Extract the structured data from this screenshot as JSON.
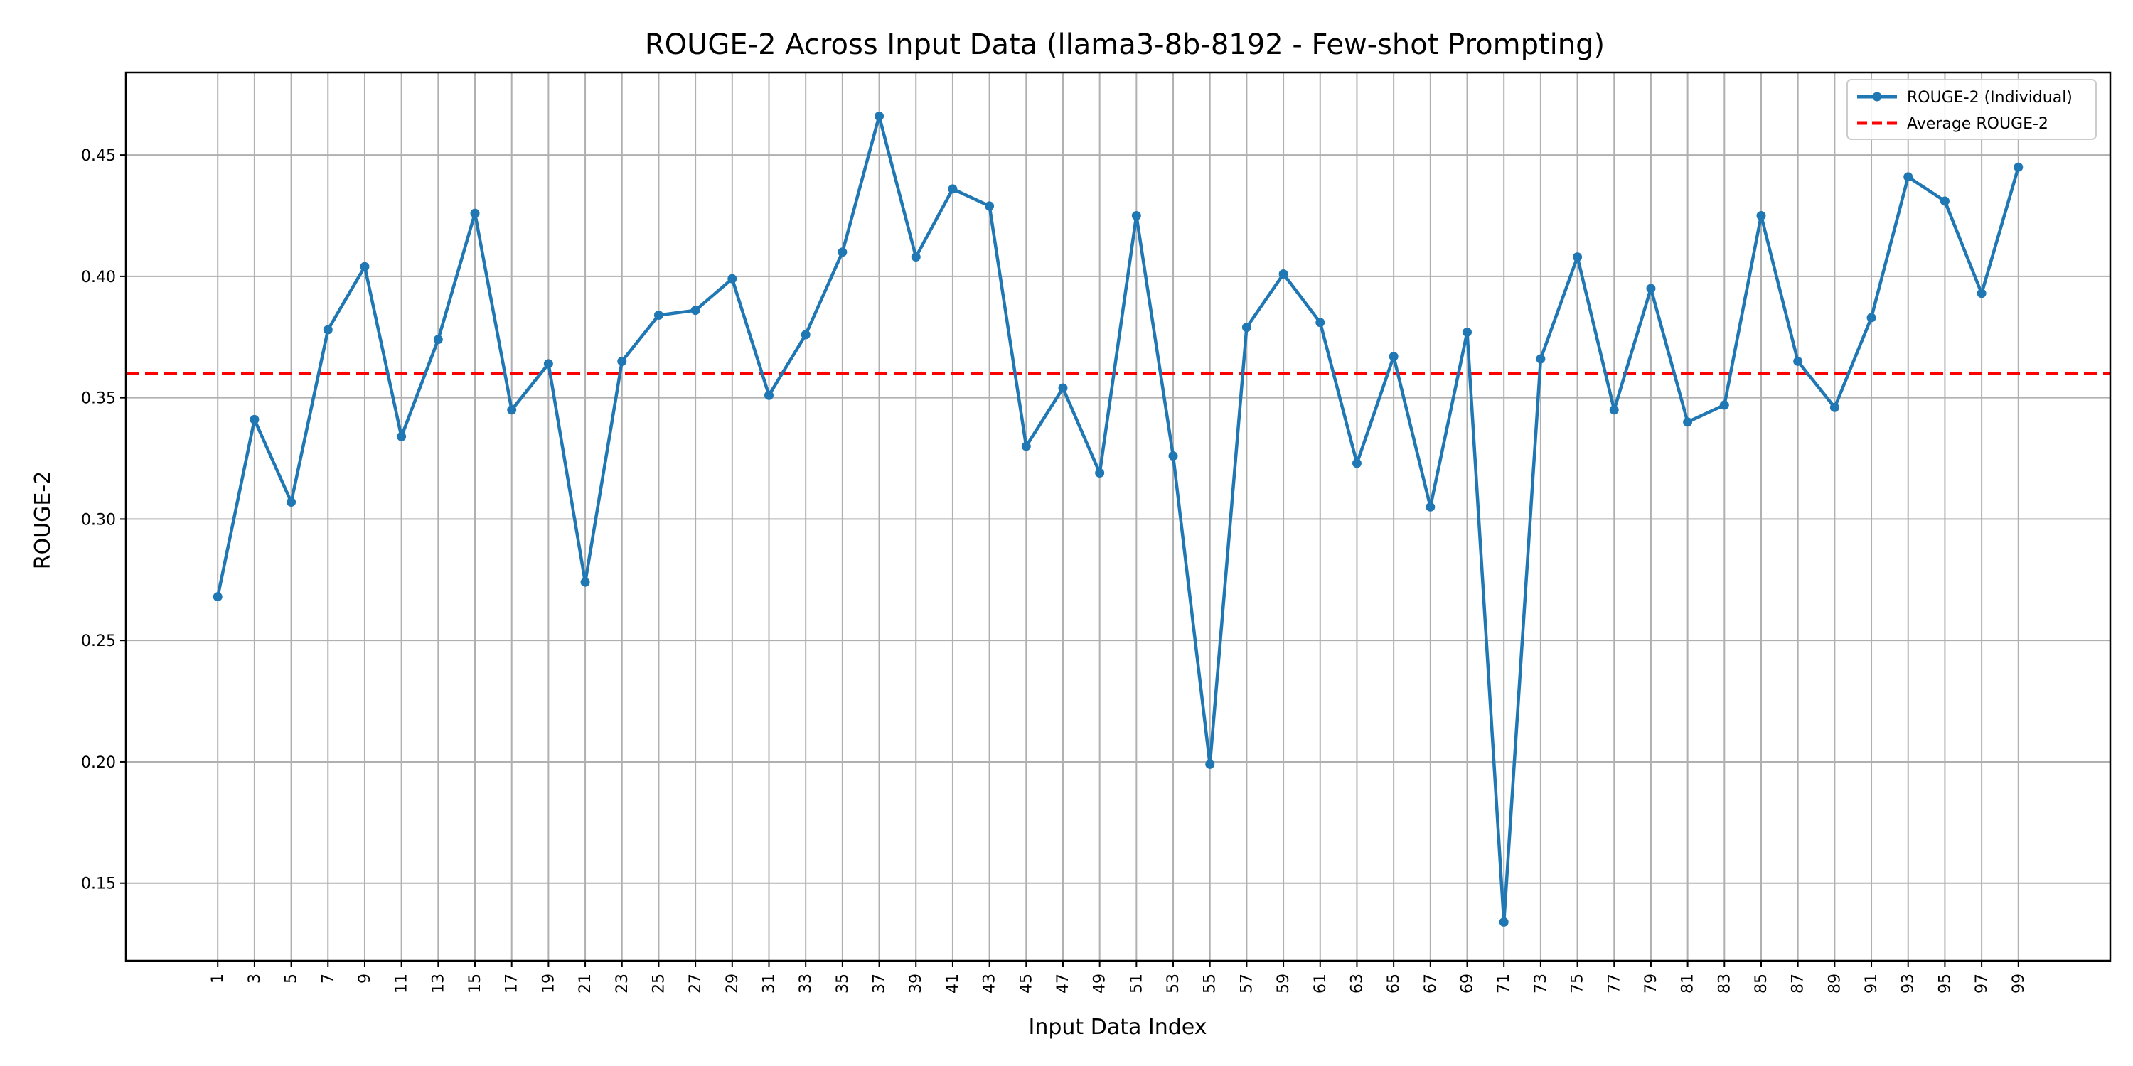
{
  "chart_data": {
    "type": "line",
    "title": "ROUGE-2 Across Input Data (llama3-8b-8192 - Few-shot Prompting)",
    "xlabel": "Input Data Index",
    "ylabel": "ROUGE-2",
    "x": [
      1,
      3,
      5,
      7,
      9,
      11,
      13,
      15,
      17,
      19,
      21,
      23,
      25,
      27,
      29,
      31,
      33,
      35,
      37,
      39,
      41,
      43,
      45,
      47,
      49,
      51,
      53,
      55,
      57,
      59,
      61,
      63,
      65,
      67,
      69,
      71,
      73,
      75,
      77,
      79,
      81,
      83,
      85,
      87,
      89,
      91,
      93,
      95,
      97,
      99
    ],
    "x_ticks": [
      "1",
      "3",
      "5",
      "7",
      "9",
      "11",
      "13",
      "15",
      "17",
      "19",
      "21",
      "23",
      "25",
      "27",
      "29",
      "31",
      "33",
      "35",
      "37",
      "39",
      "41",
      "43",
      "45",
      "47",
      "49",
      "51",
      "53",
      "55",
      "57",
      "59",
      "61",
      "63",
      "65",
      "67",
      "69",
      "71",
      "73",
      "75",
      "77",
      "79",
      "81",
      "83",
      "85",
      "87",
      "89",
      "91",
      "93",
      "95",
      "97",
      "99"
    ],
    "xlim": [
      -4,
      104
    ],
    "ylim": [
      0.118,
      0.484
    ],
    "y_ticks": [
      "0.15",
      "0.20",
      "0.25",
      "0.30",
      "0.35",
      "0.40",
      "0.45"
    ],
    "grid": true,
    "legend_position": "top-right",
    "series": [
      {
        "name": "ROUGE-2 (Individual)",
        "style": "line-with-markers",
        "color": "#1f77b4",
        "values": [
          0.268,
          0.341,
          0.307,
          0.378,
          0.404,
          0.334,
          0.374,
          0.426,
          0.345,
          0.364,
          0.274,
          0.365,
          0.384,
          0.386,
          0.399,
          0.351,
          0.376,
          0.41,
          0.466,
          0.408,
          0.436,
          0.429,
          0.33,
          0.354,
          0.319,
          0.425,
          0.326,
          0.199,
          0.379,
          0.401,
          0.381,
          0.323,
          0.367,
          0.305,
          0.377,
          0.134,
          0.366,
          0.408,
          0.345,
          0.395,
          0.34,
          0.347,
          0.425,
          0.365,
          0.346,
          0.383,
          0.441,
          0.431,
          0.393,
          0.445
        ]
      },
      {
        "name": "Average ROUGE-2",
        "style": "dashed-horizontal",
        "color": "#ff0000",
        "value": 0.36
      }
    ]
  }
}
